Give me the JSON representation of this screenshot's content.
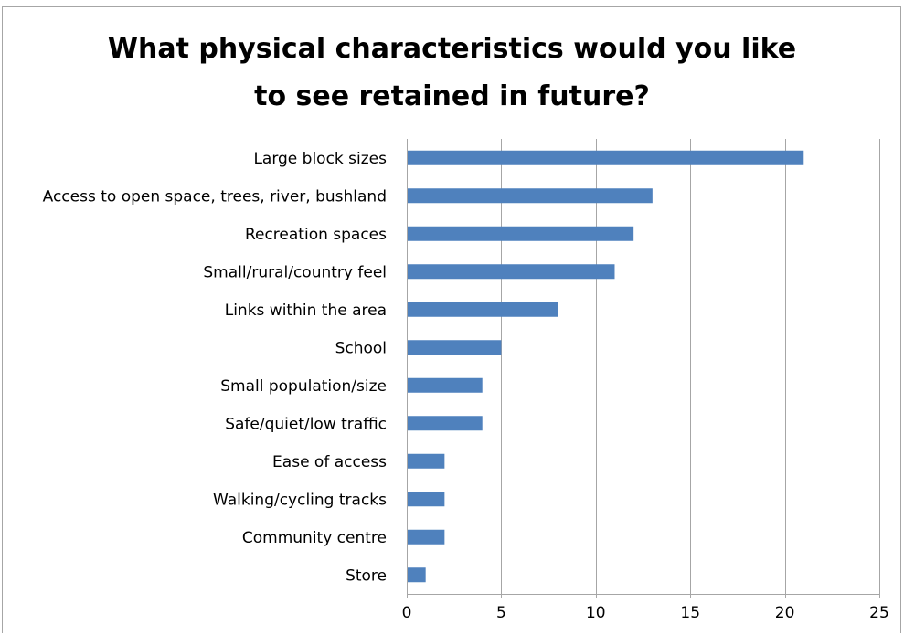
{
  "chart_data": {
    "type": "bar",
    "orientation": "horizontal",
    "title_lines": [
      "What physical characteristics would you like",
      "to see retained in future?"
    ],
    "categories": [
      "Large block sizes",
      "Access to open space, trees, river, bushland",
      "Recreation spaces",
      "Small/rural/country feel",
      "Links within the area",
      "School",
      "Small population/size",
      "Safe/quiet/low traffic",
      "Ease of access",
      "Walking/cycling tracks",
      "Community centre",
      "Store"
    ],
    "values": [
      21,
      13,
      12,
      11,
      8,
      5,
      4,
      4,
      2,
      2,
      2,
      1
    ],
    "xlim": [
      0,
      25
    ],
    "x_ticks": [
      0,
      5,
      10,
      15,
      20,
      25
    ],
    "xlabel": "",
    "ylabel": "",
    "grid": "vertical",
    "legend": "none",
    "bar_color": "#4f81bd",
    "grid_color": "#a6a6a6"
  }
}
